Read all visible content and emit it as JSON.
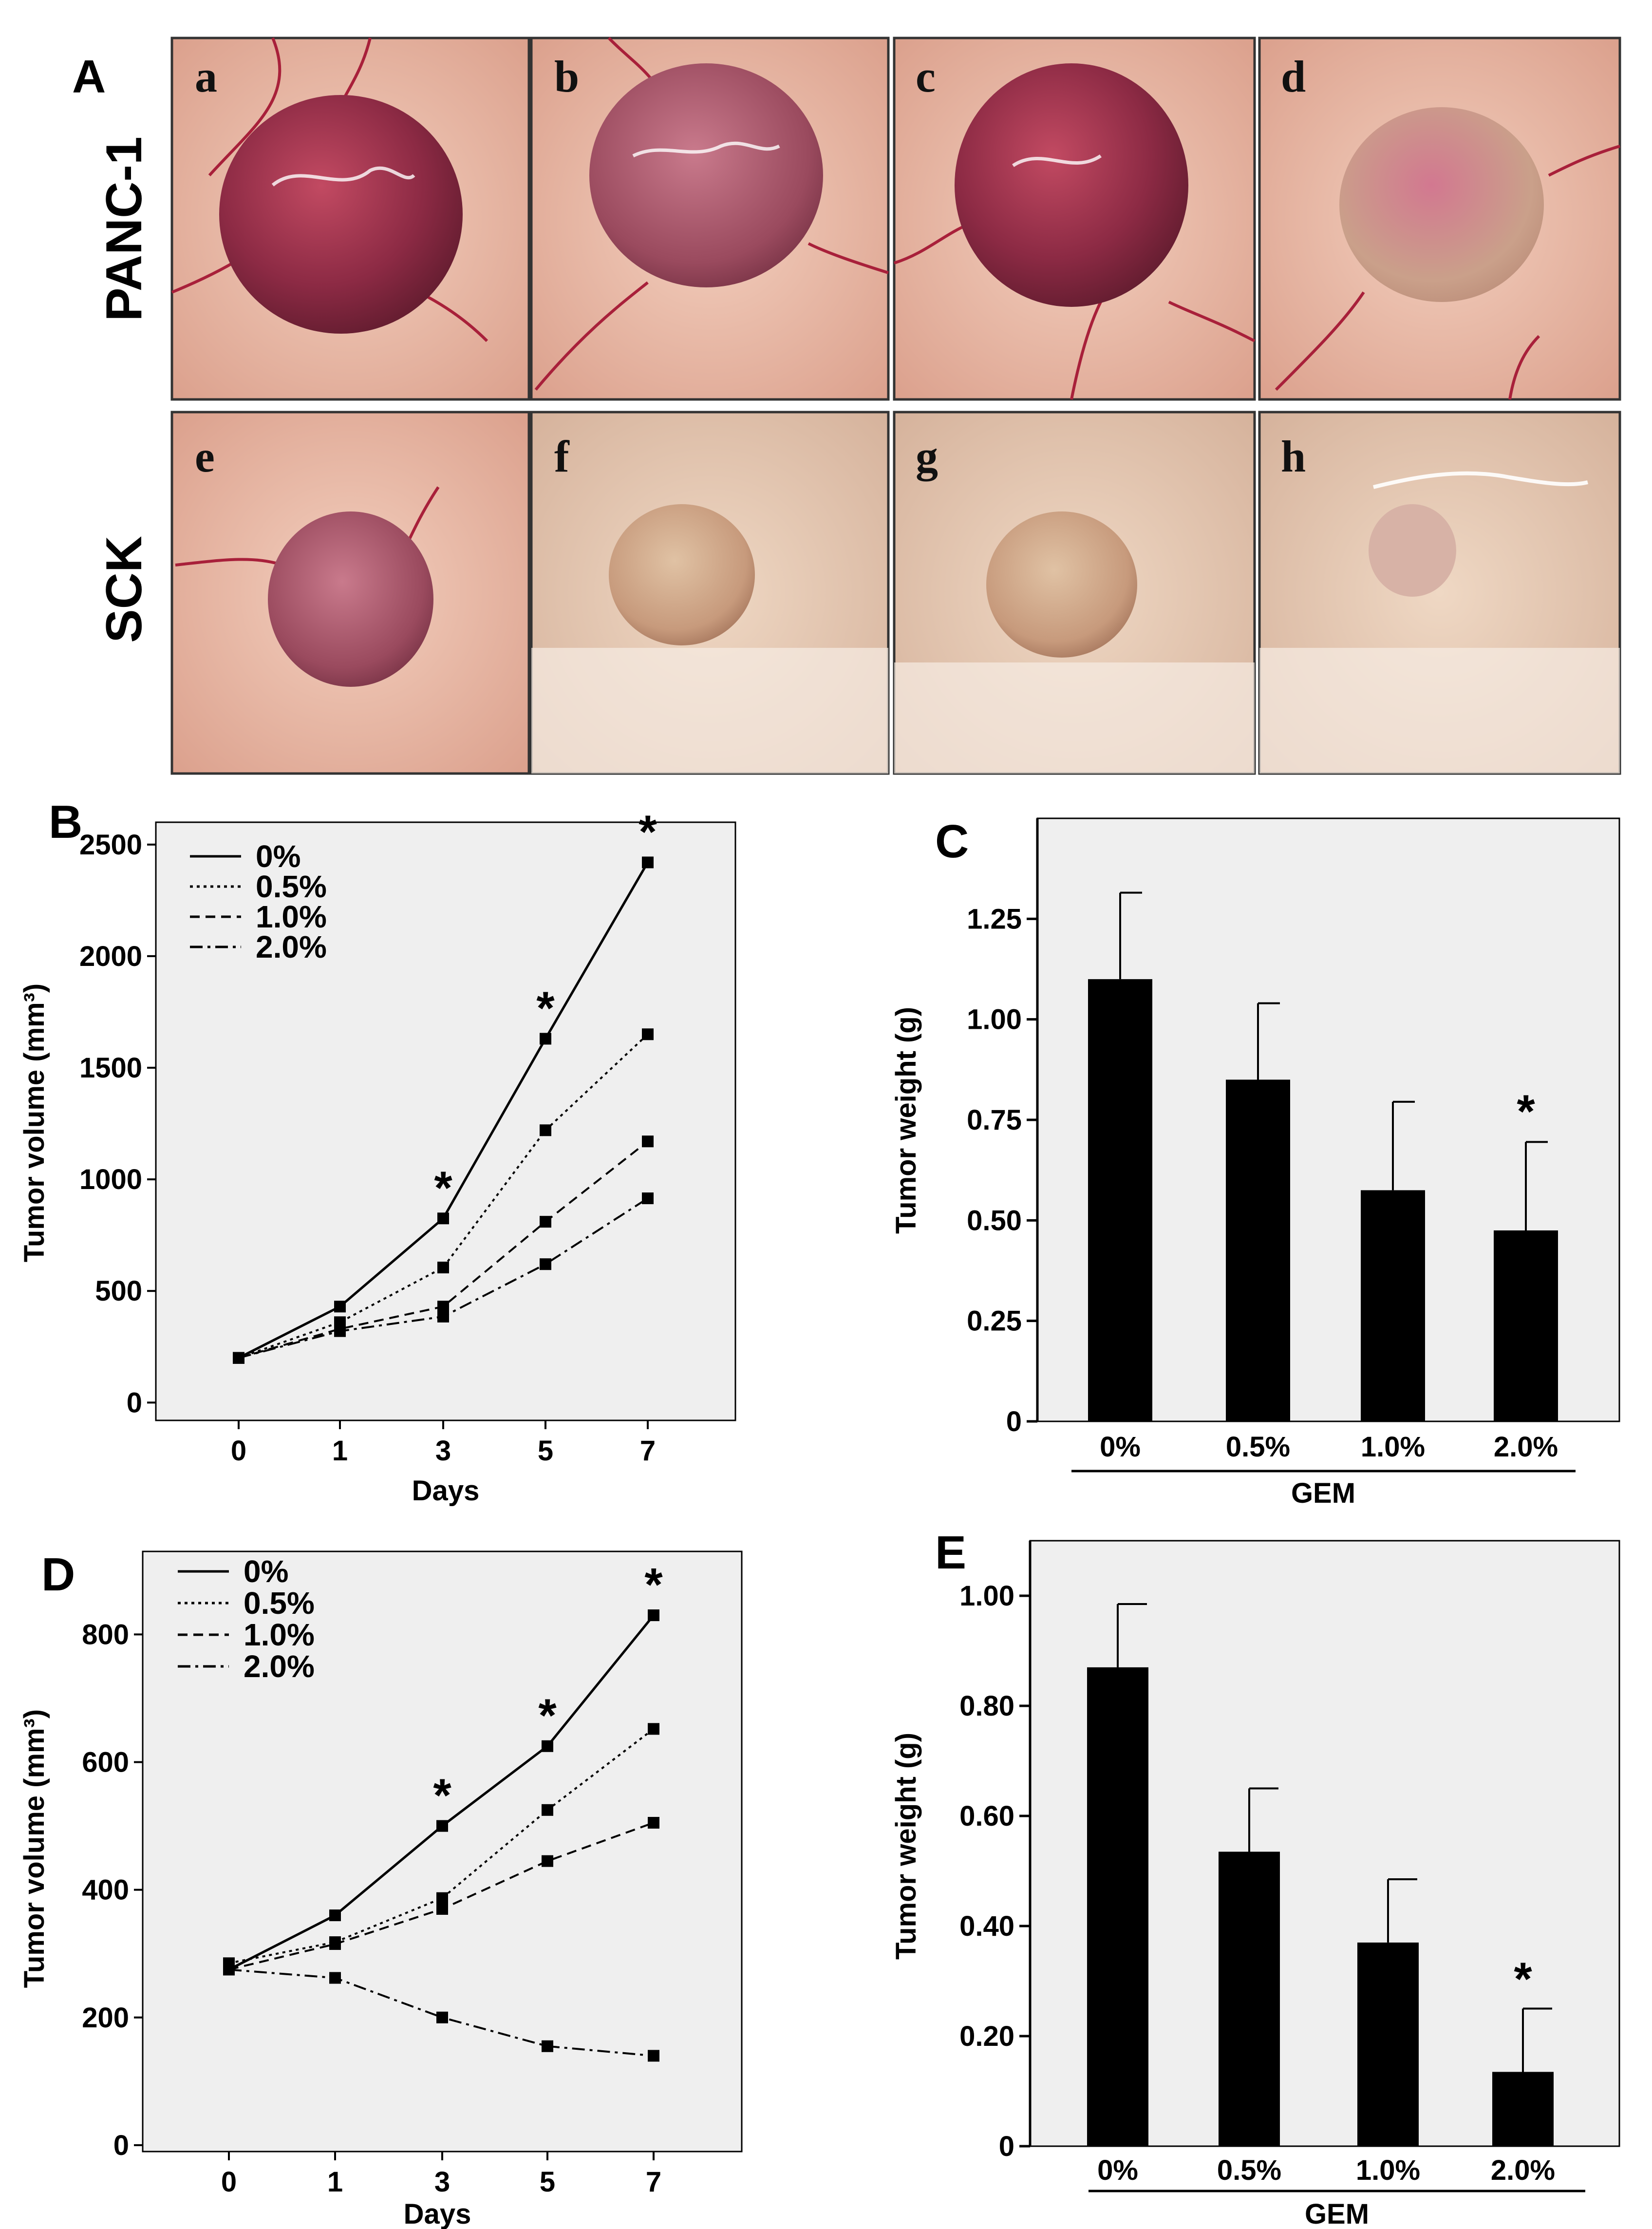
{
  "figure": {
    "panel_letters": {
      "A": "A",
      "B": "B",
      "C": "C",
      "D": "D",
      "E": "E"
    },
    "row_labels": [
      "PANC-1",
      "SCK"
    ],
    "photo_letters": [
      "a",
      "b",
      "c",
      "d",
      "e",
      "f",
      "g",
      "h"
    ]
  },
  "colors": {
    "plot_bg": "#efefef",
    "bar": "#000000",
    "line": "#000000"
  },
  "chart_data": [
    {
      "id": "B",
      "type": "line",
      "title": "",
      "xlabel": "Days",
      "ylabel": "Tumor volume (mm³)",
      "x": [
        0,
        1,
        3,
        5,
        7
      ],
      "xticks": [
        "0",
        "1",
        "3",
        "5",
        "7"
      ],
      "yticks": [
        "0",
        "500",
        "1000",
        "1500",
        "2000",
        "2500"
      ],
      "ylim": [
        -80,
        2600
      ],
      "legend_position": "top-left",
      "grid": false,
      "series": [
        {
          "name": "0%",
          "style": "solid",
          "values": [
            200,
            430,
            825,
            1630,
            2420
          ]
        },
        {
          "name": "0.5%",
          "style": "dotted",
          "values": [
            200,
            360,
            605,
            1220,
            1650
          ]
        },
        {
          "name": "1.0%",
          "style": "dashed",
          "values": [
            200,
            330,
            430,
            810,
            1170
          ]
        },
        {
          "name": "2.0%",
          "style": "dashdot",
          "values": [
            200,
            320,
            385,
            620,
            915
          ]
        }
      ],
      "significance": [
        {
          "x": 3,
          "label": "*"
        },
        {
          "x": 5,
          "label": "*"
        },
        {
          "x": 7,
          "label": "*"
        }
      ]
    },
    {
      "id": "C",
      "type": "bar",
      "title": "",
      "xlabel": "GEM",
      "ylabel": "Tumor weight (g)",
      "categories": [
        "0%",
        "0.5%",
        "1.0%",
        "2.0%"
      ],
      "values": [
        1.1,
        0.85,
        0.575,
        0.475
      ],
      "errors": [
        0.215,
        0.19,
        0.22,
        0.22
      ],
      "yticks": [
        "0",
        "0.25",
        "0.50",
        "0.75",
        "1.00",
        "1.25"
      ],
      "ylim": [
        0,
        1.5
      ],
      "grid": false,
      "significance": [
        {
          "category": "2.0%",
          "label": "*"
        }
      ]
    },
    {
      "id": "D",
      "type": "line",
      "title": "",
      "xlabel": "Days",
      "ylabel": "Tumor volume (mm³)",
      "x": [
        0,
        1,
        3,
        5,
        7
      ],
      "xticks": [
        "0",
        "1",
        "3",
        "5",
        "7"
      ],
      "yticks": [
        "0",
        "200",
        "400",
        "600",
        "800"
      ],
      "ylim": [
        -10,
        930
      ],
      "legend_position": "top-left",
      "grid": false,
      "series": [
        {
          "name": "0%",
          "style": "solid",
          "values": [
            275,
            360,
            500,
            625,
            830
          ]
        },
        {
          "name": "0.5%",
          "style": "dotted",
          "values": [
            285,
            318,
            387,
            525,
            652
          ]
        },
        {
          "name": "1.0%",
          "style": "dashed",
          "values": [
            275,
            315,
            370,
            445,
            505
          ]
        },
        {
          "name": "2.0%",
          "style": "dashdot",
          "values": [
            275,
            262,
            200,
            155,
            140
          ]
        }
      ],
      "significance": [
        {
          "x": 3,
          "label": "*"
        },
        {
          "x": 5,
          "label": "*"
        },
        {
          "x": 7,
          "label": "*"
        }
      ]
    },
    {
      "id": "E",
      "type": "bar",
      "title": "",
      "xlabel": "GEM",
      "ylabel": "Tumor weight (g)",
      "categories": [
        "0%",
        "0.5%",
        "1.0%",
        "2.0%"
      ],
      "values": [
        0.87,
        0.535,
        0.37,
        0.135
      ],
      "errors": [
        0.115,
        0.115,
        0.115,
        0.115
      ],
      "yticks": [
        "0",
        "0.20",
        "0.40",
        "0.60",
        "0.80",
        "1.00"
      ],
      "ylim": [
        0,
        1.1
      ],
      "grid": false,
      "significance": [
        {
          "category": "2.0%",
          "label": "*"
        }
      ]
    }
  ]
}
